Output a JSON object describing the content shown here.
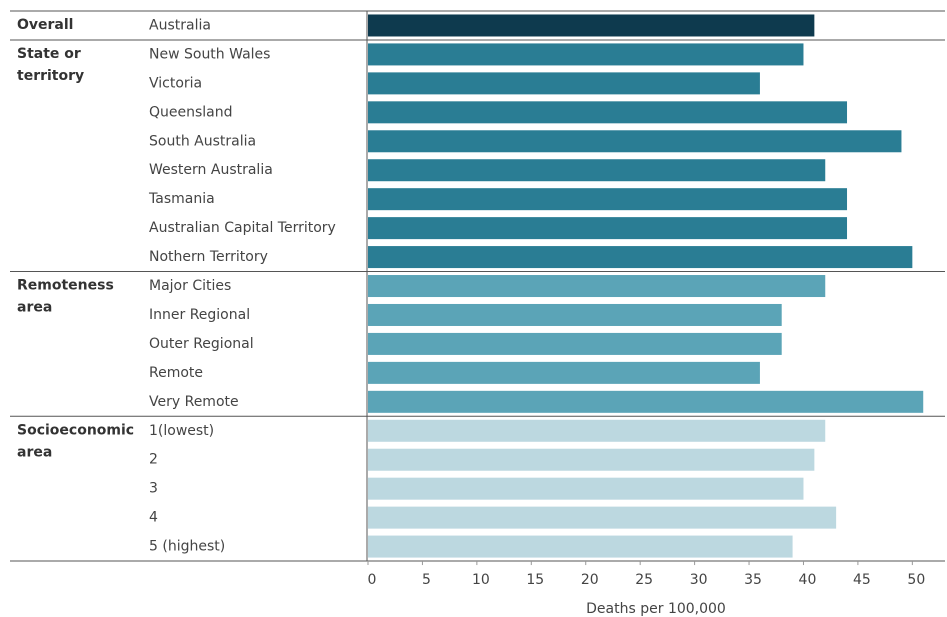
{
  "chart_data": {
    "type": "bar",
    "xlabel": "Deaths per 100,000",
    "xlim": [
      0,
      53
    ],
    "xticks": [
      0,
      5,
      10,
      15,
      20,
      25,
      30,
      35,
      40,
      45,
      50
    ],
    "groups": [
      {
        "name": "Overall",
        "color": "#0e3a4e",
        "categories": [
          "Australia"
        ],
        "values": [
          41
        ]
      },
      {
        "name": "State or territory",
        "color": "#2a7d94",
        "categories": [
          "New South Wales",
          "Victoria",
          "Queensland",
          "South Australia",
          "Western Australia",
          "Tasmania",
          "Australian Capital Territory",
          "Nothern Territory"
        ],
        "values": [
          40,
          36,
          44,
          49,
          42,
          44,
          44,
          50
        ]
      },
      {
        "name": "Remoteness area",
        "color": "#5ba4b7",
        "categories": [
          "Major Cities",
          "Inner Regional",
          "Outer Regional",
          "Remote",
          "Very Remote"
        ],
        "values": [
          42,
          38,
          38,
          36,
          51
        ]
      },
      {
        "name": "Socioeconomic area",
        "color": "#bcd8e0",
        "categories": [
          "1(lowest)",
          "2",
          "3",
          "4",
          "5 (highest)"
        ],
        "values": [
          42,
          41,
          40,
          43,
          39
        ]
      }
    ]
  }
}
